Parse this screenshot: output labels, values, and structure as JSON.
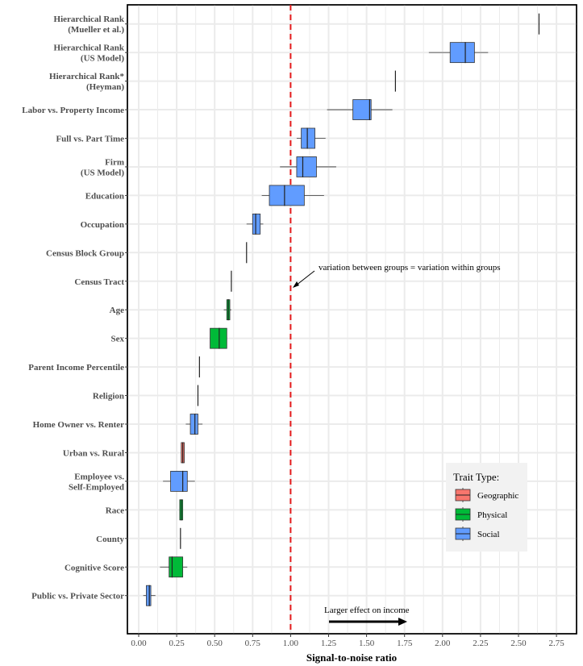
{
  "chart_data": {
    "type": "boxplot",
    "xlabel": "Signal-to-noise ratio",
    "xlim": [
      -0.03,
      2.87
    ],
    "xticks": [
      0,
      0.25,
      0.5,
      0.75,
      1.0,
      1.25,
      1.5,
      1.75,
      2.0,
      2.25,
      2.5,
      2.75
    ],
    "xtick_labels": [
      "0.00",
      "0.25",
      "0.50",
      "0.75",
      "1.00",
      "1.25",
      "1.50",
      "1.75",
      "2.00",
      "2.25",
      "2.50",
      "2.75"
    ],
    "grid": true,
    "reference_line": {
      "x": 1.0,
      "color": "#e41a1c",
      "style": "dashed"
    },
    "annotations": {
      "reference": "variation between groups = variation within groups",
      "effect": "Larger effect on income"
    },
    "legend": {
      "title": "Trait Type:",
      "position": "bottom-right",
      "items": [
        {
          "label": "Geographic",
          "color": "#f8766d"
        },
        {
          "label": "Physical",
          "color": "#00ba38"
        },
        {
          "label": "Social",
          "color": "#619cff"
        }
      ]
    },
    "traits": [
      {
        "label": [
          "Hierarchical Rank",
          "(Mueller et al.)"
        ],
        "type": "Social",
        "whisker_low": 2.635,
        "q1": 2.635,
        "median": 2.635,
        "q3": 2.635,
        "whisker_high": 2.635
      },
      {
        "label": [
          "Hierarchical Rank",
          "(US Model)"
        ],
        "type": "Social",
        "whisker_low": 1.91,
        "q1": 2.05,
        "median": 2.15,
        "q3": 2.21,
        "whisker_high": 2.3
      },
      {
        "label": [
          "Hierarchical Rank*",
          "(Heyman)"
        ],
        "type": "Social",
        "whisker_low": 1.69,
        "q1": 1.69,
        "median": 1.69,
        "q3": 1.69,
        "whisker_high": 1.69
      },
      {
        "label": [
          "Labor vs. Property Income"
        ],
        "type": "Social",
        "whisker_low": 1.24,
        "q1": 1.41,
        "median": 1.52,
        "q3": 1.53,
        "whisker_high": 1.67
      },
      {
        "label": [
          "Full vs. Part Time"
        ],
        "type": "Social",
        "whisker_low": 1.04,
        "q1": 1.07,
        "median": 1.11,
        "q3": 1.16,
        "whisker_high": 1.23
      },
      {
        "label": [
          "Firm",
          "(US Model)"
        ],
        "type": "Social",
        "whisker_low": 0.93,
        "q1": 1.04,
        "median": 1.08,
        "q3": 1.17,
        "whisker_high": 1.3
      },
      {
        "label": [
          "Education"
        ],
        "type": "Social",
        "whisker_low": 0.81,
        "q1": 0.86,
        "median": 0.96,
        "q3": 1.09,
        "whisker_high": 1.22
      },
      {
        "label": [
          "Occupation"
        ],
        "type": "Social",
        "whisker_low": 0.71,
        "q1": 0.75,
        "median": 0.77,
        "q3": 0.8,
        "whisker_high": 0.82
      },
      {
        "label": [
          "Census Block Group"
        ],
        "type": "Geographic",
        "whisker_low": 0.71,
        "q1": 0.71,
        "median": 0.71,
        "q3": 0.71,
        "whisker_high": 0.71
      },
      {
        "label": [
          "Census Tract"
        ],
        "type": "Geographic",
        "whisker_low": 0.61,
        "q1": 0.61,
        "median": 0.61,
        "q3": 0.61,
        "whisker_high": 0.61
      },
      {
        "label": [
          "Age"
        ],
        "type": "Physical",
        "whisker_low": 0.56,
        "q1": 0.58,
        "median": 0.59,
        "q3": 0.6,
        "whisker_high": 0.61
      },
      {
        "label": [
          "Sex"
        ],
        "type": "Physical",
        "whisker_low": 0.47,
        "q1": 0.47,
        "median": 0.53,
        "q3": 0.58,
        "whisker_high": 0.58
      },
      {
        "label": [
          "Parent Income Percentile"
        ],
        "type": "Social",
        "whisker_low": 0.4,
        "q1": 0.4,
        "median": 0.4,
        "q3": 0.4,
        "whisker_high": 0.4
      },
      {
        "label": [
          "Religion"
        ],
        "type": "Social",
        "whisker_low": 0.39,
        "q1": 0.39,
        "median": 0.39,
        "q3": 0.39,
        "whisker_high": 0.39
      },
      {
        "label": [
          "Home Owner vs. Renter"
        ],
        "type": "Social",
        "whisker_low": 0.31,
        "q1": 0.34,
        "median": 0.37,
        "q3": 0.39,
        "whisker_high": 0.42
      },
      {
        "label": [
          "Urban vs. Rural"
        ],
        "type": "Geographic",
        "whisker_low": 0.28,
        "q1": 0.28,
        "median": 0.29,
        "q3": 0.3,
        "whisker_high": 0.3
      },
      {
        "label": [
          "Employee vs.",
          "Self-Employed"
        ],
        "type": "Social",
        "whisker_low": 0.16,
        "q1": 0.21,
        "median": 0.29,
        "q3": 0.32,
        "whisker_high": 0.37
      },
      {
        "label": [
          "Race"
        ],
        "type": "Physical",
        "whisker_low": 0.27,
        "q1": 0.27,
        "median": 0.28,
        "q3": 0.29,
        "whisker_high": 0.29
      },
      {
        "label": [
          "County"
        ],
        "type": "Geographic",
        "whisker_low": 0.275,
        "q1": 0.275,
        "median": 0.275,
        "q3": 0.275,
        "whisker_high": 0.275
      },
      {
        "label": [
          "Cognitive Score"
        ],
        "type": "Physical",
        "whisker_low": 0.14,
        "q1": 0.2,
        "median": 0.22,
        "q3": 0.29,
        "whisker_high": 0.32
      },
      {
        "label": [
          "Public vs. Private Sector"
        ],
        "type": "Social",
        "whisker_low": 0.03,
        "q1": 0.05,
        "median": 0.07,
        "q3": 0.08,
        "whisker_high": 0.11
      }
    ]
  }
}
